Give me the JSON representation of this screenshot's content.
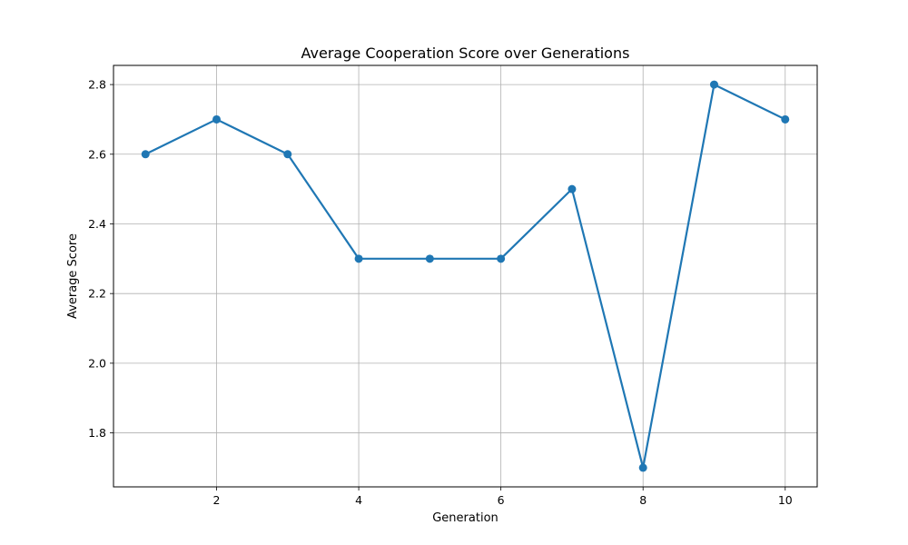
{
  "chart_data": {
    "type": "line",
    "title": "Average Cooperation Score over Generations",
    "xlabel": "Generation",
    "ylabel": "Average Score",
    "x": [
      1,
      2,
      3,
      4,
      5,
      6,
      7,
      8,
      9,
      10
    ],
    "series": [
      {
        "values": [
          2.6,
          2.7,
          2.6,
          2.3,
          2.3,
          2.3,
          2.5,
          1.7,
          2.8,
          2.7
        ]
      }
    ],
    "xticks": [
      "2",
      "4",
      "6",
      "8",
      "10"
    ],
    "yticks": [
      "1.8",
      "2.0",
      "2.2",
      "2.4",
      "2.6",
      "2.8"
    ],
    "xlim": [
      0.55,
      10.45
    ],
    "ylim": [
      1.645,
      2.855
    ],
    "grid": true,
    "marker": "circle",
    "line_color": "#1f77b4"
  }
}
